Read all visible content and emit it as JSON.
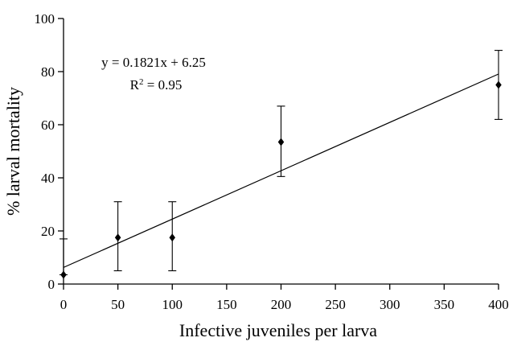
{
  "chart_data": {
    "type": "scatter",
    "title": "",
    "xlabel": "Infective juveniles per larva",
    "ylabel": "% larval mortality",
    "xlim": [
      0,
      400
    ],
    "ylim": [
      0,
      100
    ],
    "x_ticks": [
      0,
      50,
      100,
      150,
      200,
      250,
      300,
      350,
      400
    ],
    "y_ticks": [
      0,
      20,
      40,
      60,
      80,
      100
    ],
    "x_tick_labels": [
      "0",
      "50",
      "100",
      "150",
      "200",
      "250",
      "300",
      "350",
      "400"
    ],
    "y_tick_labels": [
      "0",
      "20",
      "40",
      "60",
      "80",
      "100"
    ],
    "grid": false,
    "points": [
      {
        "x": 0,
        "y": 3.5,
        "err_low": 3.5,
        "err_high": 17
      },
      {
        "x": 50,
        "y": 17.5,
        "err_low": 5,
        "err_high": 31
      },
      {
        "x": 100,
        "y": 17.5,
        "err_low": 5,
        "err_high": 31
      },
      {
        "x": 200,
        "y": 53.5,
        "err_low": 40.5,
        "err_high": 67
      },
      {
        "x": 400,
        "y": 75,
        "err_low": 62,
        "err_high": 88
      }
    ],
    "trendline": {
      "slope": 0.1821,
      "intercept": 6.25
    },
    "annotations": {
      "equation": "y = 0.1821x + 6.25",
      "r_squared_prefix": "R",
      "r_squared_exponent": "2",
      "r_squared_suffix": " = 0.95"
    },
    "colors": {
      "marker": "#000000",
      "line": "#000000",
      "axis": "#000000"
    }
  }
}
